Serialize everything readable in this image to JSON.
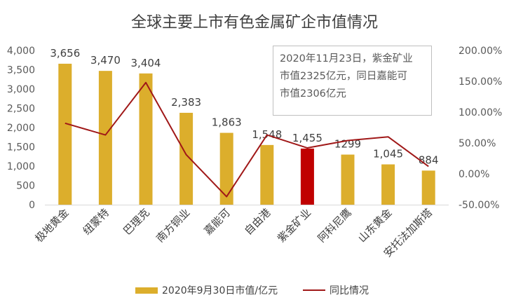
{
  "chart_data": {
    "type": "bar",
    "title": "全球主要上市有色金属矿企市值情况",
    "categories": [
      "极地黄金",
      "纽蒙特",
      "巴理克",
      "南方铜业",
      "嘉能可",
      "自由港",
      "紫金矿业",
      "阿科尼鹰",
      "山东黄金",
      "安托法加斯塔"
    ],
    "series": [
      {
        "name": "2020年9月30日市值/亿元",
        "type": "bar",
        "axis": "left",
        "values": [
          3656,
          3470,
          3404,
          2383,
          1863,
          1548,
          1455,
          1299,
          1045,
          884
        ],
        "labels": [
          "3,656",
          "3,470",
          "3,404",
          "2,383",
          "1,863",
          "1,548",
          "1,455",
          "1299",
          "1,045",
          "884"
        ],
        "color": "#dcae2c",
        "highlight_category": "紫金矿业",
        "highlight_color": "#c00000"
      },
      {
        "name": "同比情况",
        "type": "line",
        "axis": "right",
        "values": [
          0.82,
          0.63,
          1.48,
          0.31,
          -0.37,
          0.63,
          0.42,
          0.54,
          0.6,
          0.12
        ],
        "color": "#a01818"
      }
    ],
    "y_left": {
      "min": 0,
      "max": 4000,
      "ticks": [
        0,
        500,
        1000,
        1500,
        2000,
        2500,
        3000,
        3500,
        4000
      ],
      "tick_labels": [
        "0",
        "500",
        "1,000",
        "1,500",
        "2,000",
        "2,500",
        "3,000",
        "3,500",
        "4,000"
      ]
    },
    "y_right": {
      "min": -0.5,
      "max": 2.0,
      "ticks": [
        -0.5,
        0,
        0.5,
        1.0,
        1.5,
        2.0
      ],
      "tick_labels": [
        "-50.00%",
        "0.00%",
        "50.00%",
        "100.00%",
        "150.00%",
        "200.00%"
      ]
    },
    "grid": false,
    "legend_position": "bottom",
    "annotation": [
      "2020年11月23日，紫金矿业",
      "市值2325亿元，同日嘉能可",
      "市值2306亿元"
    ]
  }
}
